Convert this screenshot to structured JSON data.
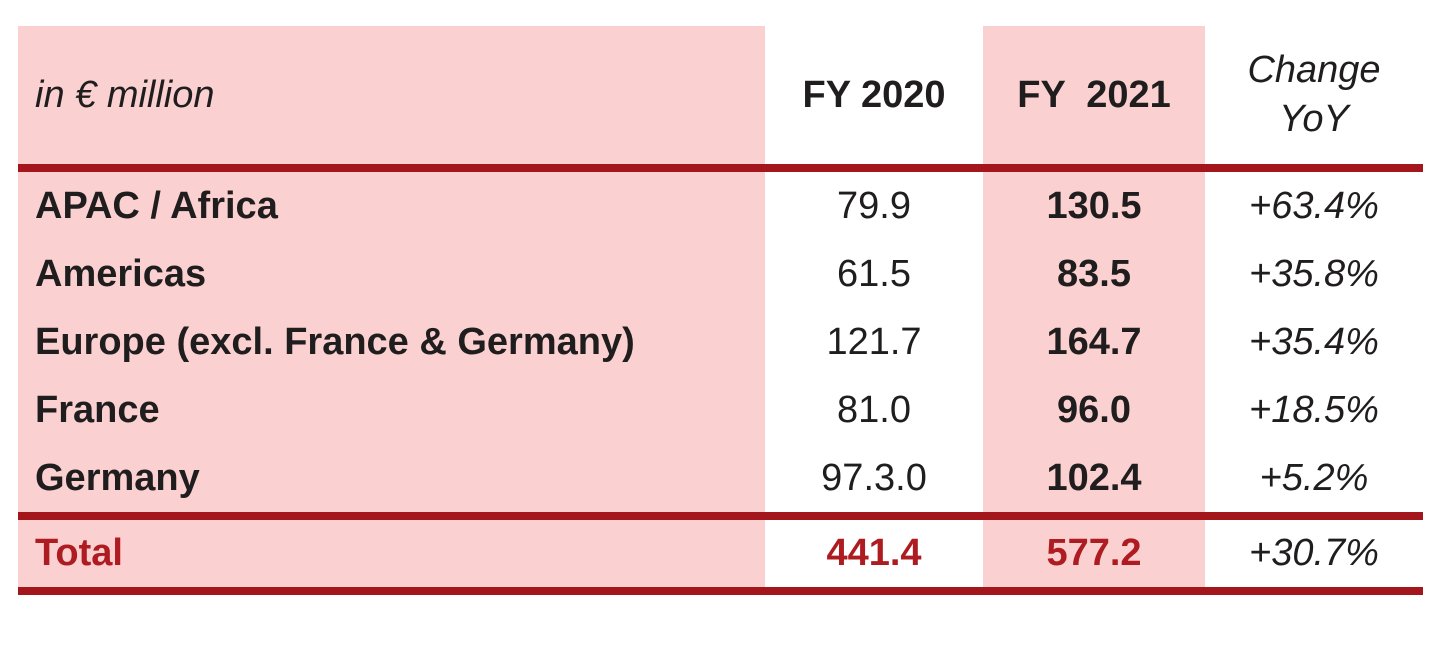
{
  "colors": {
    "column_band_pink": "#FBD0D0",
    "rule_line_red": "#A3161C",
    "total_text_red": "#AE1C21",
    "body_text_black": "#1F1D1E"
  },
  "table": {
    "unit_label": "in € million",
    "col_fy2020": "FY 2020",
    "col_fy2021": "FY  2021",
    "col_change": "Change\nYoY",
    "rows": [
      {
        "region": "APAC / Africa",
        "fy2020": "79.9",
        "fy2021": "130.5",
        "change": "+63.4%"
      },
      {
        "region": "Americas",
        "fy2020": "61.5",
        "fy2021": "83.5",
        "change": "+35.8%"
      },
      {
        "region": "Europe (excl. France & Germany)",
        "fy2020": "121.7",
        "fy2021": "164.7",
        "change": "+35.4%"
      },
      {
        "region": "France",
        "fy2020": "81.0",
        "fy2021": "96.0",
        "change": "+18.5%"
      },
      {
        "region": "Germany",
        "fy2020": "97.3.0",
        "fy2021": "102.4",
        "change": "+5.2%"
      }
    ],
    "total": {
      "label": "Total",
      "fy2020": "441.4",
      "fy2021": "577.2",
      "change": "+30.7%"
    }
  },
  "chart_data": {
    "type": "table",
    "unit": "in € million",
    "columns": [
      "in € million",
      "FY 2020",
      "FY 2021",
      "Change YoY"
    ],
    "rows": [
      [
        "APAC / Africa",
        "79.9",
        "130.5",
        "+63.4%"
      ],
      [
        "Americas",
        "61.5",
        "83.5",
        "+35.8%"
      ],
      [
        "Europe (excl. France & Germany)",
        "121.7",
        "164.7",
        "+35.4%"
      ],
      [
        "France",
        "81.0",
        "96.0",
        "+18.5%"
      ],
      [
        "Germany",
        "97.3.0",
        "102.4",
        "+5.2%"
      ]
    ],
    "total_row": [
      "Total",
      "441.4",
      "577.2",
      "+30.7%"
    ],
    "layout_hints": {
      "highlighted_columns": [
        "region",
        "FY 2021"
      ],
      "highlight_color": "#FBD0D0",
      "rule_lines": "horizontal dark red above body, above total, below total"
    }
  }
}
